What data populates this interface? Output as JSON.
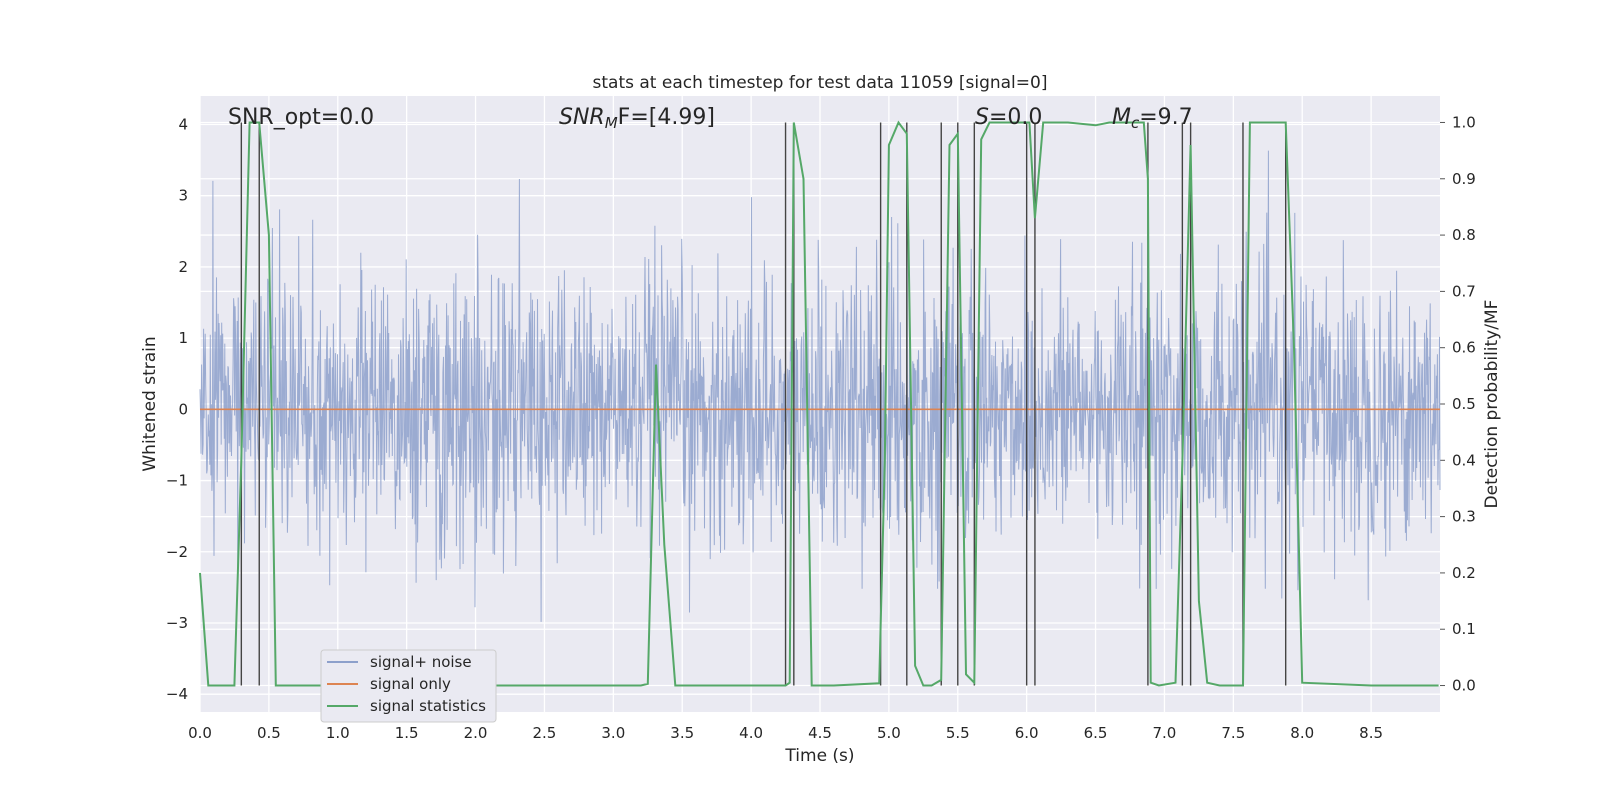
{
  "chart_data": {
    "type": "line",
    "title": "stats at each timestep for test data 11059 [signal=0]",
    "xlabel": "Time (s)",
    "ylabel": "Whitened strain",
    "y2label": "Detection probability/MF",
    "xlim": [
      0.0,
      9.0
    ],
    "ylim": [
      -4.25,
      4.4
    ],
    "y2lim": [
      -0.047,
      1.047
    ],
    "grid": true,
    "x_ticks": [
      "0.0",
      "0.5",
      "1.0",
      "1.5",
      "2.0",
      "2.5",
      "3.0",
      "3.5",
      "4.0",
      "4.5",
      "5.0",
      "5.5",
      "6.0",
      "6.5",
      "7.0",
      "7.5",
      "8.0",
      "8.5"
    ],
    "y_ticks": [
      "4",
      "3",
      "2",
      "1",
      "0",
      "−1",
      "−2",
      "−3",
      "−4"
    ],
    "y2_ticks": [
      "1.0",
      "0.9",
      "0.8",
      "0.7",
      "0.6",
      "0.5",
      "0.4",
      "0.3",
      "0.2",
      "0.1",
      "0.0"
    ],
    "annotations": {
      "snr_opt": "SNR_opt=0.0",
      "snr_mf_base": "SNR",
      "snr_mf_sub": "M",
      "snr_mf_rest": "F=[4.99]",
      "s_label": "S",
      "s_value": "=0.0",
      "mc_base": "M",
      "mc_sub": "c",
      "mc_value": "=9.7"
    },
    "legend": {
      "position": "lower-left",
      "entries": [
        "signal+ noise",
        "signal only",
        "signal statistics"
      ]
    },
    "series": [
      {
        "name": "signal+ noise",
        "axis": "left",
        "description": "whitened noise strain, approx gaussian, |peaks| up to ~4",
        "typical_range": [
          -1.5,
          1.5
        ],
        "peak_range": [
          -3.9,
          4.0
        ]
      },
      {
        "name": "signal only",
        "axis": "left",
        "x": [
          0.0,
          9.0
        ],
        "values": [
          0.0,
          0.0
        ]
      },
      {
        "name": "signal statistics",
        "axis": "right",
        "x": [
          0.0,
          0.06,
          0.25,
          0.3,
          0.36,
          0.43,
          0.5,
          0.55,
          3.2,
          3.25,
          3.31,
          3.37,
          3.45,
          4.25,
          4.28,
          4.31,
          4.38,
          4.44,
          4.5,
          4.6,
          4.93,
          4.97,
          5.0,
          5.07,
          5.13,
          5.19,
          5.25,
          5.31,
          5.38,
          5.44,
          5.5,
          5.56,
          5.62,
          5.67,
          5.73,
          5.79,
          6.02,
          6.06,
          6.12,
          6.3,
          6.5,
          6.6,
          6.85,
          6.88,
          6.9,
          6.96,
          7.08,
          7.13,
          7.19,
          7.25,
          7.31,
          7.4,
          7.57,
          7.62,
          7.68,
          7.88,
          7.94,
          8.0,
          8.5,
          8.99
        ],
        "values": [
          0.2,
          0.0,
          0.0,
          0.4,
          1.0,
          1.0,
          0.8,
          0.0,
          0.0,
          0.003,
          0.57,
          0.25,
          0.0,
          0.0,
          0.005,
          1.0,
          0.9,
          0.0,
          0.0,
          0.0,
          0.004,
          0.4,
          0.96,
          1.0,
          0.98,
          0.035,
          0.0,
          0.0,
          0.01,
          0.96,
          0.98,
          0.02,
          0.005,
          0.97,
          1.0,
          1.0,
          1.0,
          0.83,
          1.0,
          1.0,
          0.995,
          1.0,
          1.0,
          0.9,
          0.005,
          0.0,
          0.005,
          0.4,
          0.96,
          0.15,
          0.005,
          0.0,
          0.0,
          1.0,
          1.0,
          1.0,
          0.6,
          0.005,
          0.0,
          0.0
        ]
      }
    ],
    "vertical_markers_x": [
      0.3,
      0.43,
      4.25,
      4.31,
      4.94,
      5.13,
      5.38,
      5.5,
      5.62,
      6.0,
      6.06,
      6.88,
      7.13,
      7.19,
      7.57,
      7.88
    ],
    "colors": {
      "noise": "#8da0cb",
      "signal_only": "#dd8452",
      "statistics": "#55a868",
      "markers": "#444444",
      "axes_bg": "#eaeaf2",
      "grid": "#ffffff"
    }
  }
}
